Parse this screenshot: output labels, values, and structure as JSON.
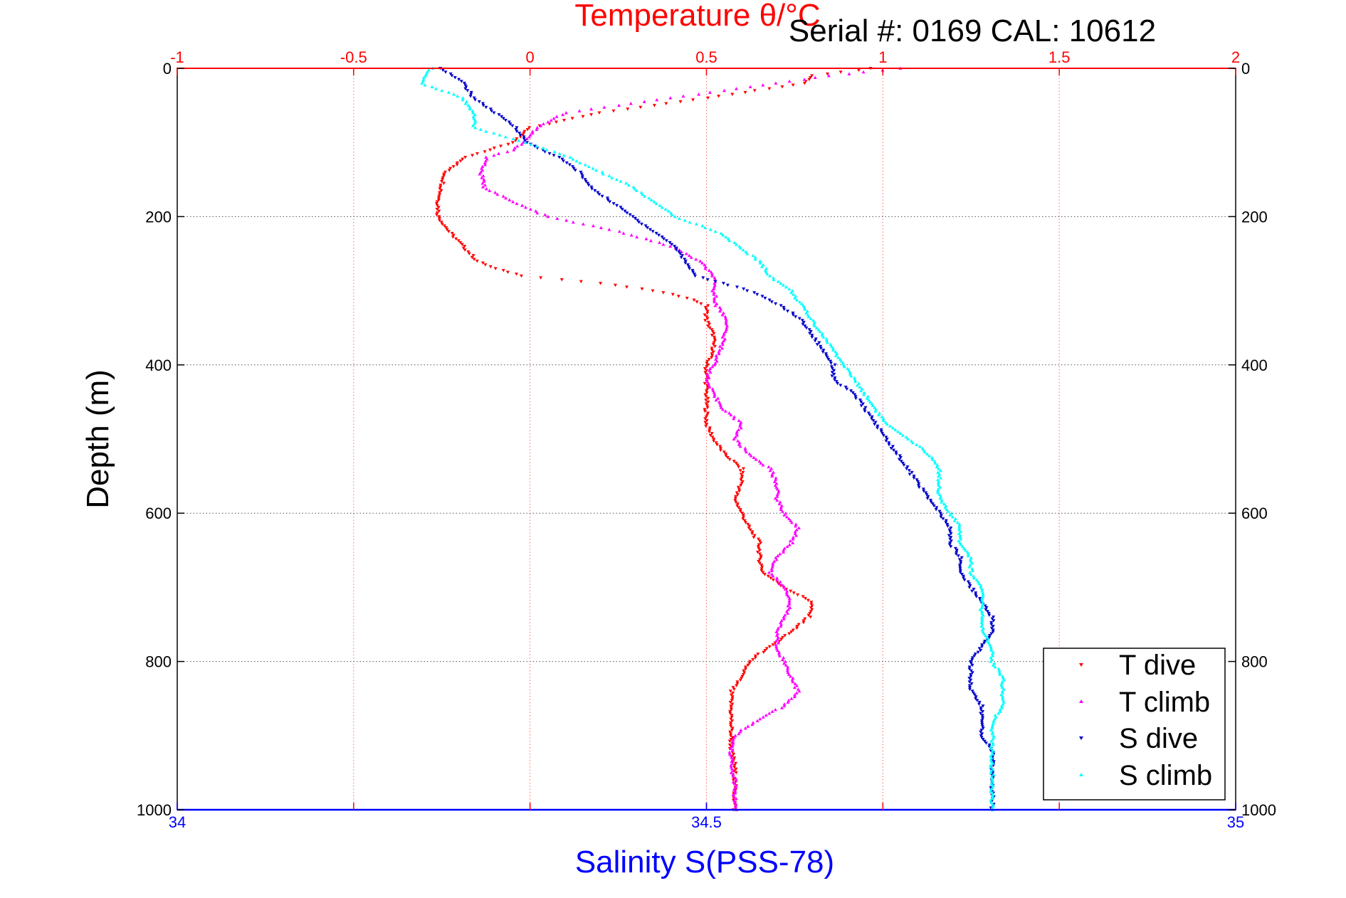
{
  "chart_data": {
    "type": "scatter",
    "title_temperature": "Temperature θ/°C",
    "title_serial": "Serial #: 0169 CAL: 10612",
    "xlabel_salinity": "Salinity S(PSS-78)",
    "ylabel": "Depth (m)",
    "temperature_axis": {
      "range": [
        -1,
        2
      ],
      "ticks": [
        -1,
        -0.5,
        0,
        0.5,
        1,
        1.5,
        2
      ],
      "tick_labels": [
        "-1",
        "-0.5",
        "0",
        "0.5",
        "1",
        "1.5",
        "2"
      ]
    },
    "salinity_axis": {
      "range": [
        34,
        35
      ],
      "ticks": [
        34,
        34.5,
        35
      ],
      "tick_labels": [
        "34",
        "34.5",
        "35"
      ]
    },
    "depth_axis": {
      "range": [
        0,
        1000
      ],
      "reversed": true,
      "ticks": [
        0,
        200,
        400,
        600,
        800,
        1000
      ],
      "tick_labels": [
        "0",
        "200",
        "400",
        "600",
        "800",
        "1000"
      ]
    },
    "grid": true,
    "legend_position": "bottom-right",
    "colors": {
      "T dive": "#ff0000",
      "T climb": "#ff00ff",
      "S dive": "#0000cc",
      "S climb": "#00ffff",
      "temperature_axis": "#ff0000",
      "salinity_axis": "#0000ff"
    },
    "series": [
      {
        "name": "T dive",
        "axis": "temperature",
        "depth": [
          0,
          10,
          20,
          40,
          60,
          80,
          100,
          120,
          140,
          160,
          180,
          200,
          220,
          240,
          260,
          270,
          280,
          290,
          300,
          310,
          320,
          340,
          360,
          380,
          400,
          420,
          440,
          460,
          480,
          500,
          520,
          540,
          560,
          580,
          600,
          620,
          640,
          660,
          680,
          700,
          720,
          740,
          760,
          780,
          800,
          820,
          840,
          860,
          880,
          900,
          920,
          940,
          960,
          980,
          1000
        ],
        "values": [
          0.97,
          0.8,
          0.78,
          0.5,
          0.2,
          0.0,
          -0.05,
          -0.18,
          -0.24,
          -0.25,
          -0.26,
          -0.26,
          -0.23,
          -0.19,
          -0.15,
          -0.1,
          -0.02,
          0.2,
          0.35,
          0.45,
          0.5,
          0.5,
          0.52,
          0.52,
          0.5,
          0.5,
          0.5,
          0.5,
          0.5,
          0.52,
          0.55,
          0.6,
          0.6,
          0.58,
          0.6,
          0.62,
          0.65,
          0.65,
          0.66,
          0.72,
          0.8,
          0.79,
          0.74,
          0.68,
          0.62,
          0.6,
          0.57,
          0.57,
          0.57,
          0.57,
          0.57,
          0.58,
          0.58,
          0.58,
          0.58
        ]
      },
      {
        "name": "T climb",
        "axis": "temperature",
        "depth": [
          0,
          10,
          20,
          40,
          60,
          80,
          100,
          110,
          120,
          140,
          160,
          180,
          200,
          220,
          240,
          260,
          280,
          300,
          320,
          340,
          360,
          380,
          400,
          420,
          440,
          460,
          480,
          500,
          520,
          540,
          560,
          580,
          600,
          620,
          640,
          660,
          680,
          700,
          720,
          740,
          760,
          780,
          800,
          820,
          840,
          860,
          880,
          900,
          920,
          940,
          960,
          980,
          1000
        ],
        "values": [
          1.05,
          0.85,
          0.7,
          0.4,
          0.1,
          0.02,
          -0.02,
          -0.05,
          -0.12,
          -0.14,
          -0.13,
          -0.05,
          0.05,
          0.25,
          0.4,
          0.48,
          0.52,
          0.52,
          0.53,
          0.56,
          0.55,
          0.54,
          0.52,
          0.5,
          0.52,
          0.55,
          0.6,
          0.58,
          0.62,
          0.68,
          0.7,
          0.7,
          0.72,
          0.76,
          0.74,
          0.7,
          0.68,
          0.72,
          0.74,
          0.72,
          0.7,
          0.7,
          0.72,
          0.74,
          0.76,
          0.72,
          0.64,
          0.58,
          0.57,
          0.57,
          0.58,
          0.58,
          0.58
        ]
      },
      {
        "name": "S dive",
        "axis": "salinity",
        "depth": [
          0,
          20,
          40,
          60,
          80,
          100,
          120,
          140,
          160,
          180,
          200,
          220,
          240,
          260,
          280,
          300,
          320,
          340,
          360,
          380,
          400,
          420,
          440,
          460,
          480,
          500,
          520,
          540,
          560,
          580,
          600,
          620,
          640,
          660,
          680,
          700,
          720,
          740,
          760,
          780,
          800,
          820,
          840,
          860,
          880,
          900,
          920,
          940,
          960,
          980,
          1000
        ],
        "values": [
          34.25,
          34.27,
          34.28,
          34.3,
          34.32,
          34.33,
          34.36,
          34.38,
          34.39,
          34.41,
          34.43,
          34.45,
          34.47,
          34.48,
          34.49,
          34.54,
          34.57,
          34.59,
          34.6,
          34.61,
          34.62,
          34.62,
          34.64,
          34.65,
          34.66,
          34.67,
          34.68,
          34.69,
          34.7,
          34.71,
          34.72,
          34.73,
          34.73,
          34.74,
          34.74,
          34.75,
          34.76,
          34.77,
          34.77,
          34.76,
          34.75,
          34.75,
          34.75,
          34.76,
          34.76,
          34.76,
          34.77,
          34.77,
          34.77,
          34.77,
          34.77
        ]
      },
      {
        "name": "S climb",
        "axis": "salinity",
        "depth": [
          0,
          20,
          40,
          60,
          80,
          100,
          120,
          140,
          160,
          180,
          200,
          220,
          240,
          260,
          280,
          300,
          320,
          340,
          360,
          380,
          400,
          420,
          440,
          460,
          480,
          500,
          520,
          540,
          560,
          580,
          600,
          620,
          640,
          660,
          680,
          700,
          720,
          740,
          760,
          780,
          800,
          820,
          840,
          860,
          880,
          900,
          920,
          940,
          960,
          980,
          1000
        ],
        "values": [
          34.24,
          34.23,
          34.27,
          34.28,
          34.28,
          34.33,
          34.37,
          34.4,
          34.43,
          34.45,
          34.47,
          34.51,
          34.53,
          34.55,
          34.56,
          34.58,
          34.59,
          34.6,
          34.61,
          34.62,
          34.63,
          34.64,
          34.65,
          34.66,
          34.67,
          34.69,
          34.71,
          34.72,
          34.72,
          34.72,
          34.73,
          34.74,
          34.74,
          34.75,
          34.75,
          34.76,
          34.76,
          34.76,
          34.76,
          34.77,
          34.77,
          34.78,
          34.78,
          34.78,
          34.77,
          34.77,
          34.77,
          34.77,
          34.77,
          34.77,
          34.77
        ]
      }
    ]
  }
}
